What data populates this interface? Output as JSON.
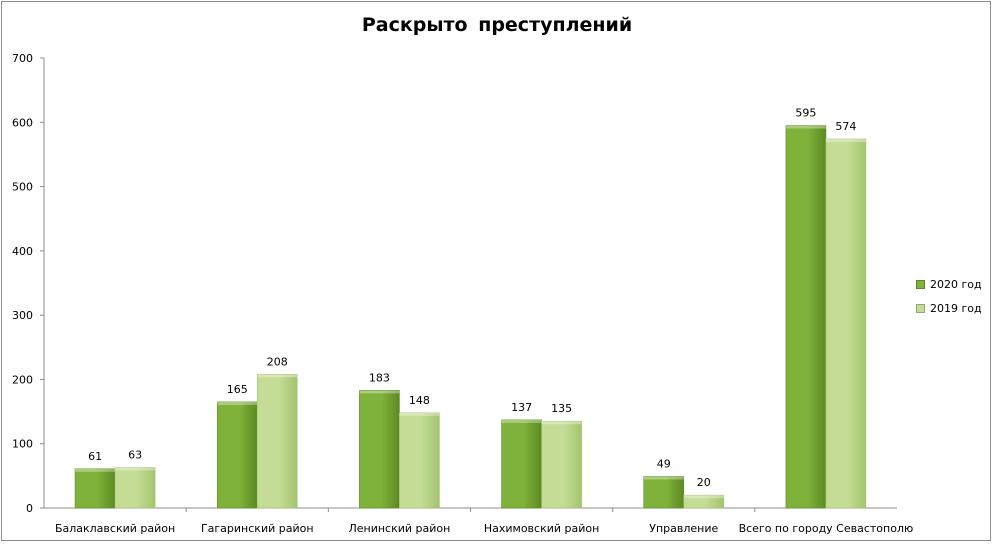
{
  "chart_data": {
    "type": "bar",
    "title": "Раскрыто преступлений",
    "categories": [
      "Балаклавский район",
      "Гагаринский район",
      "Ленинский район",
      "Нахимовский район",
      "Управление",
      "Всего по городу Севастополю"
    ],
    "series": [
      {
        "name": "2020 год",
        "values": [
          61,
          165,
          183,
          137,
          49,
          595
        ]
      },
      {
        "name": "2019 год",
        "values": [
          63,
          208,
          148,
          135,
          20,
          574
        ]
      }
    ],
    "ylim": [
      0,
      700
    ],
    "yticks": [
      0,
      100,
      200,
      300,
      400,
      500,
      600,
      700
    ],
    "grid": false,
    "legend_position": "right",
    "colors": {
      "series_2020": "#7fb23a",
      "series_2020_dark": "#5c8a22",
      "series_2019": "#c4dc96",
      "series_2019_dark": "#a3c46e"
    }
  }
}
